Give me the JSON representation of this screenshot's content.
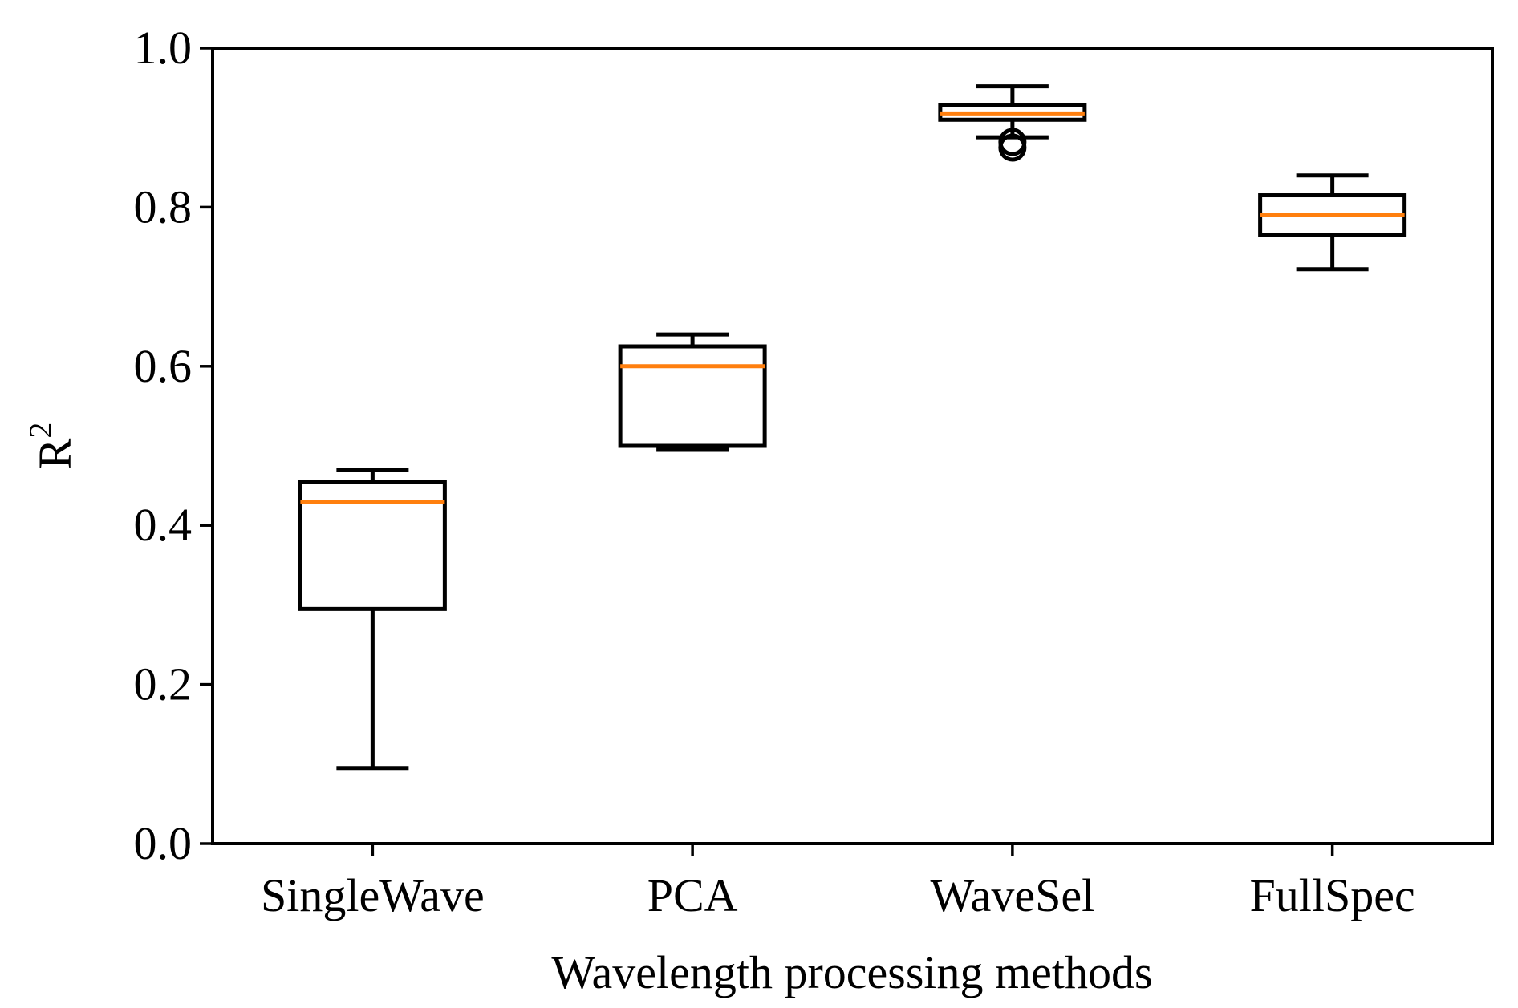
{
  "chart_data": {
    "type": "box",
    "title": "",
    "xlabel": "Wavelength processing methods",
    "ylabel_base": "R",
    "ylabel_superscript": "2",
    "ylim": [
      0.0,
      1.0
    ],
    "yticks": [
      "0.0",
      "0.2",
      "0.4",
      "0.6",
      "0.8",
      "1.0"
    ],
    "categories": [
      "SingleWave",
      "PCA",
      "WaveSel",
      "FullSpec"
    ],
    "boxes": [
      {
        "name": "SingleWave",
        "whisker_low": 0.095,
        "q1": 0.295,
        "median": 0.43,
        "q3": 0.455,
        "whisker_high": 0.47,
        "fliers": []
      },
      {
        "name": "PCA",
        "whisker_low": 0.495,
        "q1": 0.5,
        "median": 0.6,
        "q3": 0.625,
        "whisker_high": 0.64,
        "fliers": []
      },
      {
        "name": "WaveSel",
        "whisker_low": 0.888,
        "q1": 0.91,
        "median": 0.917,
        "q3": 0.928,
        "whisker_high": 0.952,
        "fliers": [
          0.875,
          0.882
        ]
      },
      {
        "name": "FullSpec",
        "whisker_low": 0.722,
        "q1": 0.765,
        "median": 0.79,
        "q3": 0.815,
        "whisker_high": 0.84,
        "fliers": []
      }
    ],
    "colors": {
      "box_edge": "#000000",
      "median": "#ff7f0e",
      "background": "#ffffff"
    }
  }
}
